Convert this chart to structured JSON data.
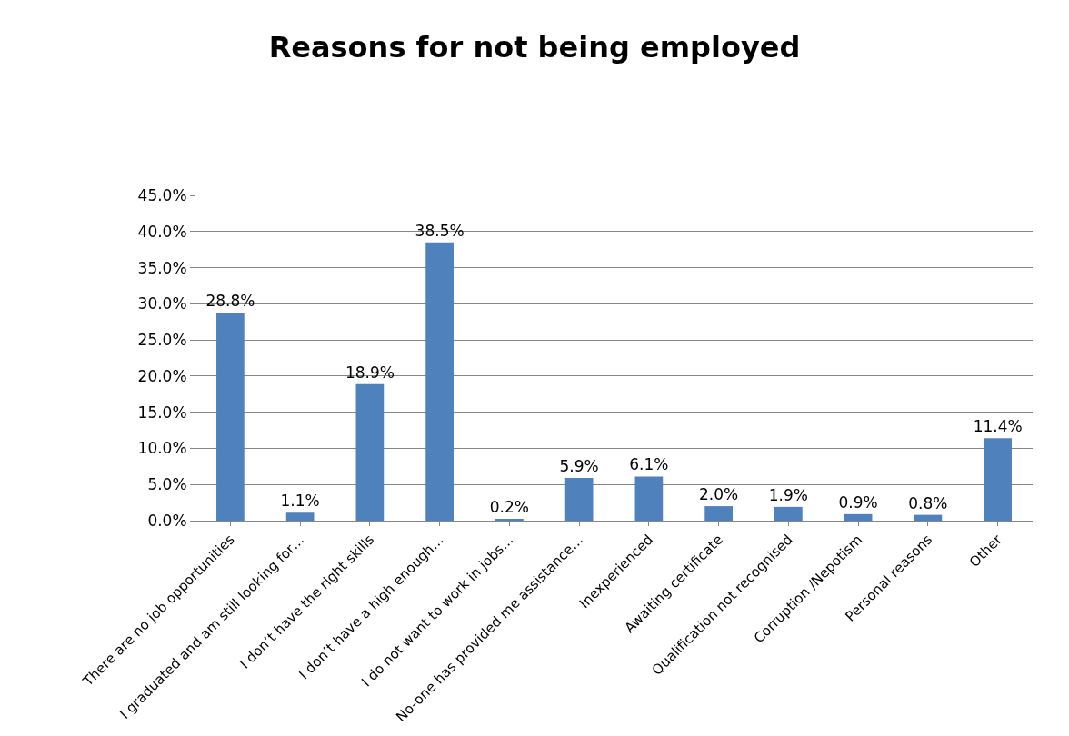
{
  "chart_data": {
    "type": "bar",
    "title": "Reasons for not being employed",
    "categories": [
      "There are no job opportunities",
      "I graduated and am still looking for…",
      "I don’t have the right skills",
      "I don’t have a high enough…",
      "I do not want to work in jobs…",
      "No-one has provided me assistance…",
      "Inexperienced",
      "Awaiting certificate",
      "Qualification not recognised",
      "Corruption /Nepotism",
      "Personal reasons",
      "Other"
    ],
    "values": [
      28.8,
      1.1,
      18.9,
      38.5,
      0.2,
      5.9,
      6.1,
      2.0,
      1.9,
      0.9,
      0.8,
      11.4
    ],
    "value_labels": [
      "28.8%",
      "1.1%",
      "18.9%",
      "38.5%",
      "0.2%",
      "5.9%",
      "6.1%",
      "2.0%",
      "1.9%",
      "0.9%",
      "0.8%",
      "11.4%"
    ],
    "color": "#4f81bd",
    "ylim": [
      0,
      45
    ],
    "yticks": [
      {
        "value": 0,
        "label": "0.0%"
      },
      {
        "value": 5,
        "label": "5.0%"
      },
      {
        "value": 10,
        "label": "10.0%"
      },
      {
        "value": 15,
        "label": "15.0%"
      },
      {
        "value": 20,
        "label": "20.0%"
      },
      {
        "value": 25,
        "label": "25.0%"
      },
      {
        "value": 30,
        "label": "30.0%"
      },
      {
        "value": 35,
        "label": "35.0%"
      },
      {
        "value": 40,
        "label": "40.0%"
      },
      {
        "value": 45,
        "label": "45.0%"
      }
    ],
    "grid": "y"
  }
}
